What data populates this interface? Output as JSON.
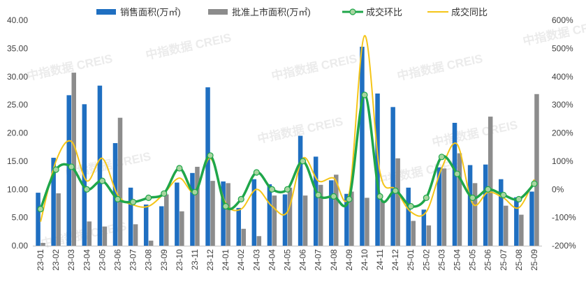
{
  "chart_data": {
    "type": "bar",
    "categories": [
      "23-01",
      "23-02",
      "23-03",
      "23-04",
      "23-05",
      "23-06",
      "23-07",
      "23-08",
      "23-09",
      "23-10",
      "23-11",
      "23-12",
      "24-01",
      "24-02",
      "24-03",
      "24-04",
      "24-05",
      "24-06",
      "24-07",
      "24-08",
      "24-09",
      "24-10",
      "24-11",
      "24-12",
      "25-01",
      "25-02",
      "25-03",
      "25-04",
      "25-05",
      "25-06",
      "25-07",
      "25-08",
      "25-09"
    ],
    "series": [
      {
        "name": "销售面积(万㎡)",
        "kind": "bar",
        "axis": "left",
        "color": "#1f6fc1",
        "values": [
          9.4,
          15.6,
          26.7,
          25.1,
          28.4,
          18.2,
          10.3,
          7.3,
          7.0,
          11.2,
          12.9,
          28.1,
          11.4,
          6.7,
          11.8,
          10.9,
          9.1,
          19.5,
          15.8,
          11.6,
          9.2,
          35.3,
          27.0,
          24.6,
          10.3,
          6.4,
          13.9,
          21.8,
          14.3,
          14.4,
          11.8,
          8.6,
          9.6
        ]
      },
      {
        "name": "批准上市面积(万㎡)",
        "kind": "bar",
        "axis": "left",
        "color": "#8c8c8c",
        "values": [
          0.5,
          9.3,
          30.7,
          4.3,
          3.4,
          22.7,
          3.8,
          0.9,
          9.1,
          6.1,
          14.0,
          11.5,
          11.1,
          3.0,
          1.7,
          8.9,
          10.3,
          8.9,
          10.8,
          12.6,
          9.6,
          8.5,
          8.0,
          15.5,
          4.4,
          3.6,
          13.7,
          16.4,
          11.1,
          22.9,
          7.1,
          5.5,
          26.9
        ]
      },
      {
        "name": "成交环比",
        "kind": "line-marker",
        "axis": "right",
        "color": "#1fa64a",
        "values": [
          -70,
          70,
          80,
          0,
          30,
          -35,
          -45,
          -30,
          -15,
          75,
          -10,
          120,
          -60,
          -35,
          60,
          0,
          0,
          100,
          -20,
          -25,
          -35,
          335,
          -25,
          -5,
          -60,
          -30,
          115,
          55,
          -30,
          0,
          -20,
          -35,
          20
        ]
      },
      {
        "name": "成交同比",
        "kind": "line",
        "axis": "right",
        "color": "#f5c518",
        "values": [
          -115,
          100,
          170,
          30,
          110,
          -20,
          -55,
          -60,
          -15,
          40,
          -10,
          110,
          -50,
          -70,
          0,
          -60,
          -80,
          110,
          30,
          40,
          -15,
          545,
          60,
          0,
          -80,
          -80,
          75,
          160,
          -50,
          -10,
          -30,
          -65,
          35
        ]
      }
    ],
    "left_axis": {
      "min": 0,
      "max": 40,
      "step": 5,
      "tick_labels": [
        "0.00",
        "5.00",
        "10.00",
        "15.00",
        "20.00",
        "25.00",
        "30.00",
        "35.00",
        "40.00"
      ]
    },
    "right_axis": {
      "min": -200,
      "max": 600,
      "step": 100,
      "tick_labels": [
        "-200%",
        "-100%",
        "0%",
        "100%",
        "200%",
        "300%",
        "400%",
        "500%",
        "600%"
      ]
    },
    "legend_position": "top",
    "grid": false,
    "watermark": "中指数据 CREIS"
  }
}
